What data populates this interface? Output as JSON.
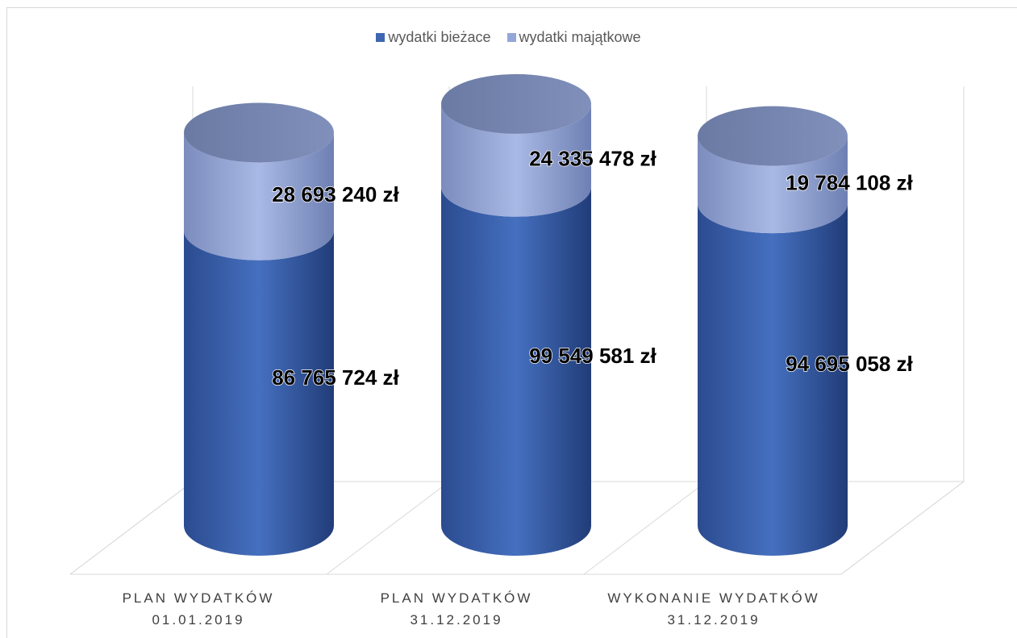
{
  "chart_data": {
    "type": "bar",
    "style": "3d-cylinder-stacked",
    "categories": [
      "PLAN WYDATKÓW 01.01.2019",
      "PLAN WYDATKÓW 31.12.2019",
      "WYKONANIE WYDATKÓW 31.12.2019"
    ],
    "category_lines": [
      [
        "PLAN WYDATKÓW",
        "01.01.2019"
      ],
      [
        "PLAN WYDATKÓW",
        "31.12.2019"
      ],
      [
        "WYKONANIE WYDATKÓW",
        "31.12.2019"
      ]
    ],
    "series": [
      {
        "name": "wydatki bieżace",
        "color": "#3f67b1",
        "values": [
          86765724,
          99549581,
          94695058
        ],
        "labels": [
          "86 765 724 zł",
          "99 549 581 zł",
          "94 695 058 zł"
        ]
      },
      {
        "name": "wydatki majątkowe",
        "color": "#95a7d8",
        "values": [
          28693240,
          24335478,
          19784108
        ],
        "labels": [
          "28 693 240 zł",
          "24 335 478 zł",
          "19 784 108 zł"
        ]
      }
    ],
    "ylim": [
      0,
      135000000
    ],
    "legend_position": "top",
    "grid": true,
    "title": "",
    "xlabel": "",
    "ylabel": ""
  }
}
